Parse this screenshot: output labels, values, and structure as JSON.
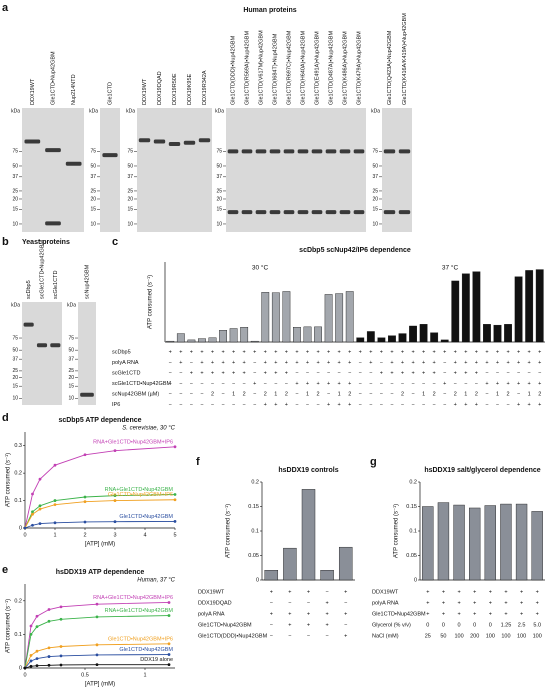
{
  "human": {
    "panel": "a",
    "title": "Human proteins",
    "gels": [
      {
        "unit": "kDa",
        "markers": [
          75,
          50,
          37,
          25,
          20,
          15,
          10
        ],
        "lanes": [
          "DDX19WT",
          "Gle1CTD•Nup42GBM",
          "Nup214NTD"
        ]
      },
      {
        "unit": "kDa",
        "markers": [
          75,
          50,
          37,
          25,
          20,
          15,
          10
        ],
        "lanes": [
          "Gle1CTD"
        ]
      },
      {
        "unit": "kDa",
        "markers": [
          75,
          50,
          37,
          25,
          20,
          15,
          10
        ],
        "lanes": [
          "DDX19WT",
          "DDX19DQAD",
          "DDX19R50E",
          "DDX19K95E",
          "DDX19R342A"
        ]
      },
      {
        "unit": "kDa",
        "markers": [
          75,
          50,
          37,
          25,
          20,
          15,
          10
        ],
        "lanes": [
          "Gle1CTD(DDD)•Nup42GBM",
          "Gle1CTD(R569A)•Nup42GBM",
          "Gle1CTD(V617M)•Nup42GBM",
          "Gle1CTD(I684T)•Nup42GBM",
          "Gle1CTD(R697C)•Nup42GBM",
          "Gle1CTD(H640A)•Nup42GBM",
          "Gle1CTD(E491A)•Nup42GBM",
          "Gle1CTD(D487A)•Nup42GBM",
          "Gle1CTD(K486A)•Nup42GBM",
          "Gle1CTD(K479A)•Nup42GBM"
        ]
      },
      {
        "unit": "kDa",
        "markers": [
          75,
          50,
          37,
          25,
          20,
          15,
          10
        ],
        "lanes": [
          "Gle1CTD(Q423A)•Nup42GBM",
          "Gle1CTD(K416A/K419A)•Nup42GBM"
        ]
      }
    ]
  },
  "yeast": {
    "panel": "b",
    "title": "Yeast proteins",
    "gels": [
      {
        "unit": "kDa",
        "markers": [
          75,
          50,
          37,
          25,
          20,
          15,
          10
        ],
        "lanes": [
          "scDbp5",
          "scGle1CTD•Nup42GBM",
          "scGle1CTD"
        ]
      },
      {
        "unit": "kDa",
        "markers": [
          75,
          50,
          37,
          25,
          20,
          15,
          10
        ],
        "lanes": [
          "scNup42GBM"
        ]
      }
    ]
  },
  "chart_data": [
    {
      "panel": "c",
      "type": "bar",
      "title": "scDbp5 scNup42/IP6 dependence",
      "y_label": "ATP consumed (s⁻¹)",
      "ylim": [
        0,
        1.9
      ],
      "series": [
        {
          "name": "30 °C",
          "color": "#a3a7ad",
          "values": [
            0.02,
            0.2,
            0.05,
            0.08,
            0.1,
            0.28,
            0.32,
            0.35,
            0.02,
            1.18,
            1.17,
            1.2,
            0.35,
            0.36,
            0.36,
            1.13,
            1.15,
            1.2
          ]
        },
        {
          "name": "37 °C",
          "color": "#111111",
          "values": [
            0.1,
            0.25,
            0.1,
            0.15,
            0.2,
            0.38,
            0.42,
            0.22,
            0.05,
            1.45,
            1.62,
            1.67,
            0.42,
            0.4,
            0.42,
            1.55,
            1.7,
            1.72
          ]
        }
      ],
      "rows": [
        {
          "label": "scDbp5",
          "cells": [
            "+",
            "+",
            "+",
            "+",
            "+",
            "+",
            "+",
            "+",
            "+",
            "+",
            "+",
            "+",
            "+",
            "+",
            "+",
            "+",
            "+",
            "+"
          ]
        },
        {
          "label": "polyA RNA",
          "cells": [
            "−",
            "+",
            "−",
            "+",
            "+",
            "+",
            "+",
            "+",
            "−",
            "+",
            "+",
            "+",
            "+",
            "+",
            "+",
            "+",
            "+",
            "+"
          ]
        },
        {
          "label": "scGle1CTD",
          "cells": [
            "−",
            "−",
            "+",
            "+",
            "+",
            "+",
            "+",
            "+",
            "−",
            "+",
            "+",
            "+",
            "−",
            "−",
            "−",
            "−",
            "−",
            "−"
          ]
        },
        {
          "label": "scGle1CTD•Nup42GBM",
          "cells": [
            "−",
            "−",
            "−",
            "−",
            "−",
            "−",
            "−",
            "−",
            "+",
            "−",
            "−",
            "−",
            "+",
            "+",
            "+",
            "+",
            "+",
            "+"
          ]
        },
        {
          "label": "scNup42GBM (µM)",
          "cells": [
            "−",
            "−",
            "−",
            "−",
            "2",
            "−",
            "1",
            "2",
            "−",
            "2",
            "1",
            "2",
            "−",
            "1",
            "2",
            "−",
            "1",
            "2"
          ]
        },
        {
          "label": "IP6",
          "cells": [
            "−",
            "−",
            "−",
            "−",
            "−",
            "−",
            "−",
            "−",
            "−",
            "+",
            "+",
            "+",
            "−",
            "−",
            "−",
            "+",
            "+",
            "+"
          ]
        }
      ]
    },
    {
      "panel": "d",
      "type": "line",
      "title": "scDbp5 ATP dependence",
      "annotation": "S. cerevisiae, 30 °C",
      "x_label": "[ATP] (mM)",
      "y_label": "ATP consumed (s⁻¹)",
      "x": [
        0,
        0.25,
        0.5,
        1,
        2,
        3,
        5
      ],
      "xlim": [
        0,
        5
      ],
      "xticks": [
        0,
        1,
        2,
        3,
        4,
        5
      ],
      "ylim": [
        0,
        0.35
      ],
      "yticks": [
        0,
        0.1,
        0.2,
        0.3
      ],
      "series": [
        {
          "name": "RNA+Gle1CTD•Nup42GBM+IP6",
          "color": "#c23fb4",
          "values": [
            0,
            0.124,
            0.178,
            0.229,
            0.267,
            0.282,
            0.296
          ]
        },
        {
          "name": "RNA+Gle1CTD•Nup42GBM",
          "color": "#3bb34a",
          "values": [
            0,
            0.059,
            0.081,
            0.1,
            0.113,
            0.118,
            0.122
          ]
        },
        {
          "name": "Gle1CTD•Nup42GBM+IP6",
          "color": "#f0a020",
          "values": [
            0,
            0.05,
            0.069,
            0.085,
            0.096,
            0.1,
            0.103
          ]
        },
        {
          "name": "Gle1CTD•Nup42GBM",
          "color": "#2a4ea0",
          "values": [
            0,
            0.01,
            0.016,
            0.019,
            0.022,
            0.023,
            0.024
          ]
        }
      ]
    },
    {
      "panel": "e",
      "type": "line",
      "title": "hsDDX19 ATP dependence",
      "annotation": "Human, 37 °C",
      "x_label": "[ATP] (mM)",
      "y_label": "ATP consumed (s⁻¹)",
      "x": [
        0,
        0.05,
        0.1,
        0.2,
        0.3,
        0.6,
        1.2
      ],
      "xlim": [
        0,
        1.25
      ],
      "xticks": [
        0,
        0.5,
        1
      ],
      "ylim": [
        0,
        0.25
      ],
      "yticks": [
        0,
        0.1,
        0.2
      ],
      "series": [
        {
          "name": "RNA+Gle1CTD•Nup42GBM+IP6",
          "color": "#c23fb4",
          "values": [
            0,
            0.125,
            0.154,
            0.174,
            0.182,
            0.19,
            0.195
          ]
        },
        {
          "name": "RNA+Gle1CTD•Nup42GBM",
          "color": "#3bb34a",
          "values": [
            0,
            0.1,
            0.123,
            0.139,
            0.145,
            0.152,
            0.156
          ]
        },
        {
          "name": "Gle1CTD•Nup42GBM+IP6",
          "color": "#f0a020",
          "values": [
            0,
            0.0375,
            0.05,
            0.06,
            0.064,
            0.069,
            0.072
          ]
        },
        {
          "name": "Gle1CTD•Nup42GBM",
          "color": "#2a4ea0",
          "values": [
            0,
            0.021,
            0.028,
            0.034,
            0.036,
            0.039,
            0.04
          ]
        },
        {
          "name": "DDX19 alone",
          "color": "#111111",
          "values": [
            0,
            0.005,
            0.007,
            0.008,
            0.009,
            0.01,
            0.01
          ]
        }
      ]
    },
    {
      "panel": "f",
      "type": "bar",
      "title": "hsDDX19 controls",
      "y_label": "ATP consumed (s⁻¹)",
      "ylim": [
        0,
        0.2
      ],
      "yticks": [
        0,
        0.05,
        0.1,
        0.15,
        0.2
      ],
      "color": "#8a8f98",
      "values": [
        0.02,
        0.065,
        0.185,
        0.02,
        0.067
      ],
      "rows": [
        {
          "label": "DDX19WT",
          "cells": [
            "+",
            "+",
            "+",
            "−",
            "+"
          ]
        },
        {
          "label": "DDX19DQAD",
          "cells": [
            "−",
            "−",
            "−",
            "+",
            "−"
          ]
        },
        {
          "label": "polyA RNA",
          "cells": [
            "+",
            "+",
            "+",
            "+",
            "+"
          ]
        },
        {
          "label": "Gle1CTD•Nup42GBM",
          "cells": [
            "−",
            "+",
            "+",
            "+",
            "−"
          ]
        },
        {
          "label": "Gle1CTD(DDD)•Nup42GBM",
          "cells": [
            "−",
            "−",
            "−",
            "−",
            "+"
          ]
        }
      ]
    },
    {
      "panel": "g",
      "type": "bar",
      "title": "hsDDX19 salt/glycerol dependence",
      "y_label": "ATP consumed (s⁻¹)",
      "ylim": [
        0,
        0.2
      ],
      "yticks": [
        0,
        0.05,
        0.1,
        0.15,
        0.2
      ],
      "color": "#8a8f98",
      "values": [
        0.15,
        0.158,
        0.153,
        0.147,
        0.152,
        0.155,
        0.155,
        0.14
      ],
      "rows": [
        {
          "label": "DDX19WT",
          "cells": [
            "+",
            "+",
            "+",
            "+",
            "+",
            "+",
            "+",
            "+"
          ]
        },
        {
          "label": "polyA RNA",
          "cells": [
            "+",
            "+",
            "+",
            "+",
            "+",
            "+",
            "+",
            "+"
          ]
        },
        {
          "label": "Gle1CTD•Nup42GBM",
          "cells": [
            "+",
            "+",
            "+",
            "+",
            "+",
            "+",
            "+",
            "+"
          ]
        },
        {
          "label": "Glycerol (% v/v)",
          "cells": [
            "0",
            "0",
            "0",
            "0",
            "0",
            "1.25",
            "2.5",
            "5.0"
          ]
        },
        {
          "label": "NaCl (mM)",
          "cells": [
            "25",
            "50",
            "100",
            "200",
            "100",
            "100",
            "100",
            "100"
          ]
        }
      ]
    }
  ]
}
